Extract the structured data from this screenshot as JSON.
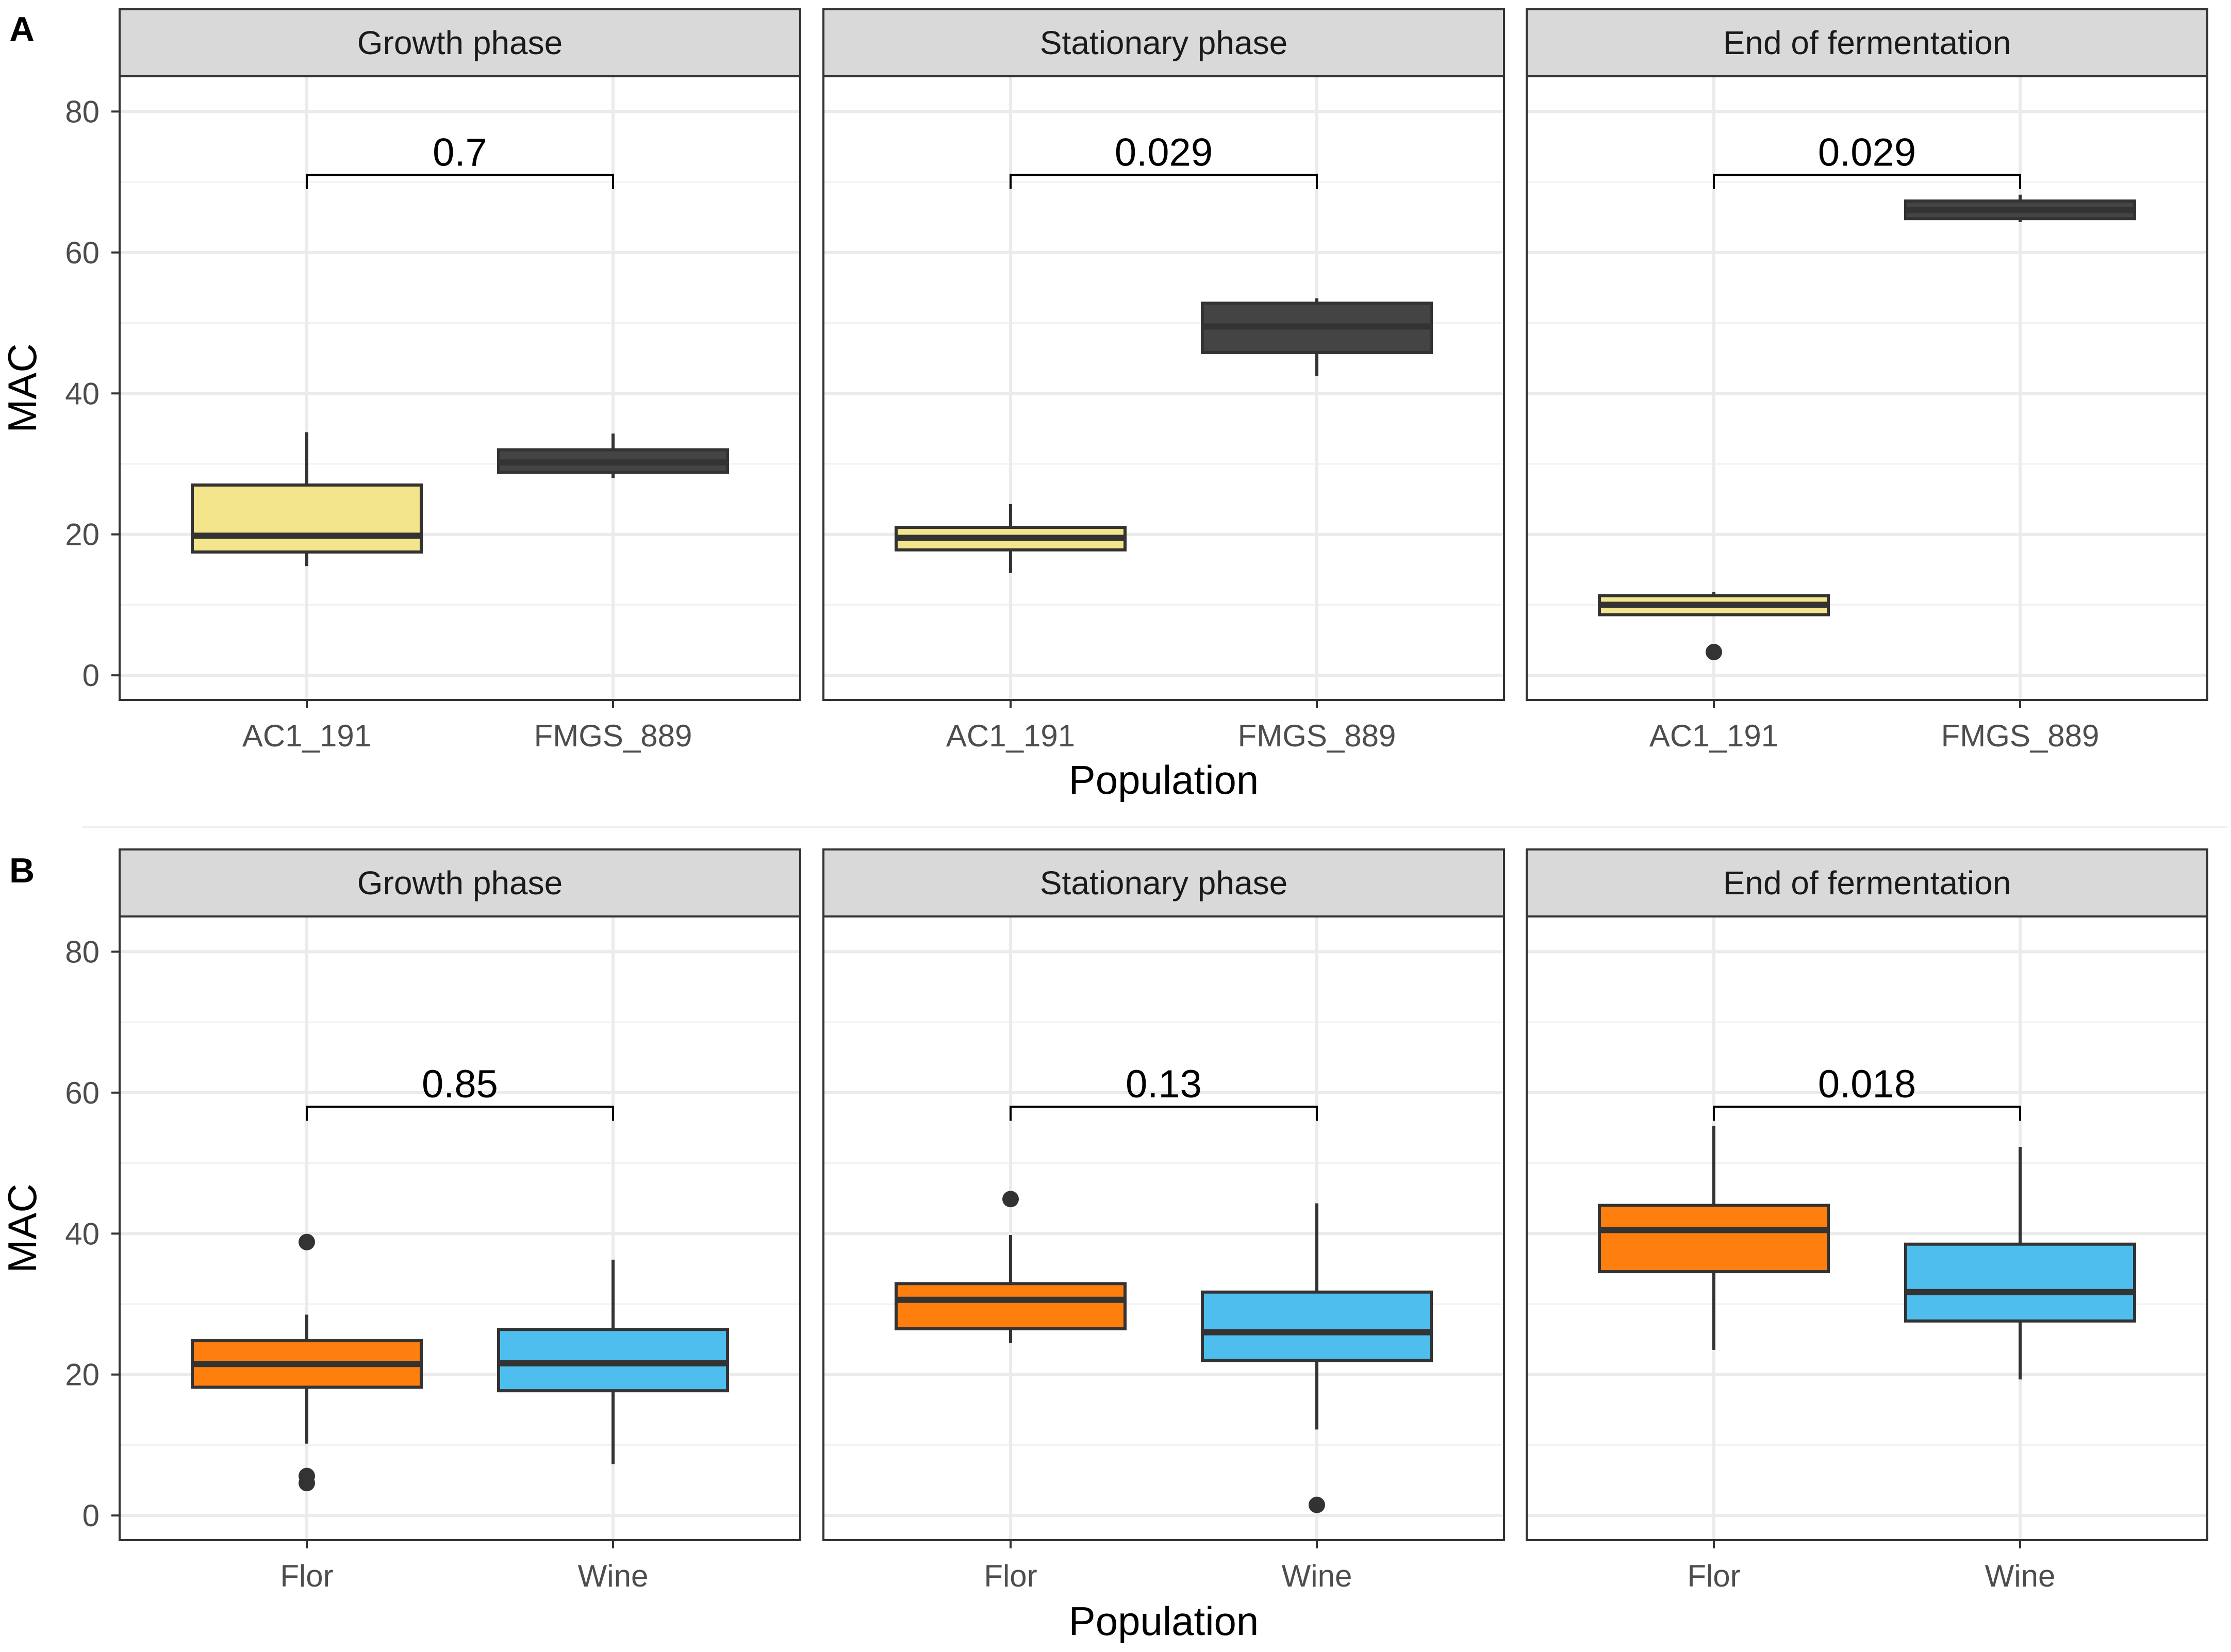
{
  "chart_data": [
    {
      "type": "boxplot",
      "panel_label": "A",
      "ylabel": "MAC",
      "xlabel": "Population",
      "ylim": [
        -3.5,
        85
      ],
      "yticks": [
        0,
        20,
        40,
        60,
        80
      ],
      "grid": true,
      "facets": [
        {
          "title": "Growth phase",
          "p_value": "0.7",
          "bracket_y": 71,
          "boxes": [
            {
              "category": "AC1_191",
              "color": "#f3e58b",
              "min": 15.5,
              "q1": 17.5,
              "median": 19.8,
              "q3": 27,
              "max": 34.5,
              "outliers": []
            },
            {
              "category": "FMGS_889",
              "color": "#444444",
              "min": 28,
              "q1": 28.8,
              "median": 30.2,
              "q3": 32,
              "max": 34.3,
              "outliers": []
            }
          ]
        },
        {
          "title": "Stationary phase",
          "p_value": "0.029",
          "bracket_y": 71,
          "boxes": [
            {
              "category": "AC1_191",
              "color": "#f3e58b",
              "min": 14.5,
              "q1": 17.8,
              "median": 19.5,
              "q3": 21,
              "max": 24.3,
              "outliers": []
            },
            {
              "category": "FMGS_889",
              "color": "#444444",
              "min": 42.5,
              "q1": 45.8,
              "median": 49.5,
              "q3": 52.8,
              "max": 53.5,
              "outliers": []
            }
          ]
        },
        {
          "title": "End of fermentation",
          "p_value": "0.029",
          "bracket_y": 71,
          "boxes": [
            {
              "category": "AC1_191",
              "color": "#f3e58b",
              "min": 8.6,
              "q1": 8.6,
              "median": 10,
              "q3": 11.3,
              "max": 11.8,
              "outliers": [
                3.3
              ]
            },
            {
              "category": "FMGS_889",
              "color": "#444444",
              "min": 64.3,
              "q1": 64.8,
              "median": 66,
              "q3": 67.3,
              "max": 68.2,
              "outliers": []
            }
          ]
        }
      ]
    },
    {
      "type": "boxplot",
      "panel_label": "B",
      "ylabel": "MAC",
      "xlabel": "Population",
      "ylim": [
        -3.5,
        85
      ],
      "yticks": [
        0,
        20,
        40,
        60,
        80
      ],
      "grid": true,
      "facets": [
        {
          "title": "Growth phase",
          "p_value": "0.85",
          "bracket_y": 58,
          "boxes": [
            {
              "category": "Flor",
              "color": "#ff7f0e",
              "min": 10.2,
              "q1": 18.2,
              "median": 21.5,
              "q3": 24.8,
              "max": 28.5,
              "outliers": [
                38.8,
                5.6,
                4.6
              ]
            },
            {
              "category": "Wine",
              "color": "#4dbeee",
              "min": 7.3,
              "q1": 17.7,
              "median": 21.6,
              "q3": 26.4,
              "max": 36.3,
              "outliers": []
            }
          ]
        },
        {
          "title": "Stationary phase",
          "p_value": "0.13",
          "bracket_y": 58,
          "boxes": [
            {
              "category": "Flor",
              "color": "#ff7f0e",
              "min": 24.5,
              "q1": 26.5,
              "median": 30.6,
              "q3": 32.9,
              "max": 39.8,
              "outliers": [
                44.9
              ]
            },
            {
              "category": "Wine",
              "color": "#4dbeee",
              "min": 12.2,
              "q1": 22,
              "median": 26,
              "q3": 31.7,
              "max": 44.3,
              "outliers": [
                1.5
              ]
            }
          ]
        },
        {
          "title": "End of fermentation",
          "p_value": "0.018",
          "bracket_y": 58,
          "boxes": [
            {
              "category": "Flor",
              "color": "#ff7f0e",
              "min": 23.5,
              "q1": 34.6,
              "median": 40.5,
              "q3": 44,
              "max": 55.3,
              "outliers": []
            },
            {
              "category": "Wine",
              "color": "#4dbeee",
              "min": 19.3,
              "q1": 27.6,
              "median": 31.7,
              "q3": 38.5,
              "max": 52.3,
              "outliers": []
            }
          ]
        }
      ]
    }
  ]
}
